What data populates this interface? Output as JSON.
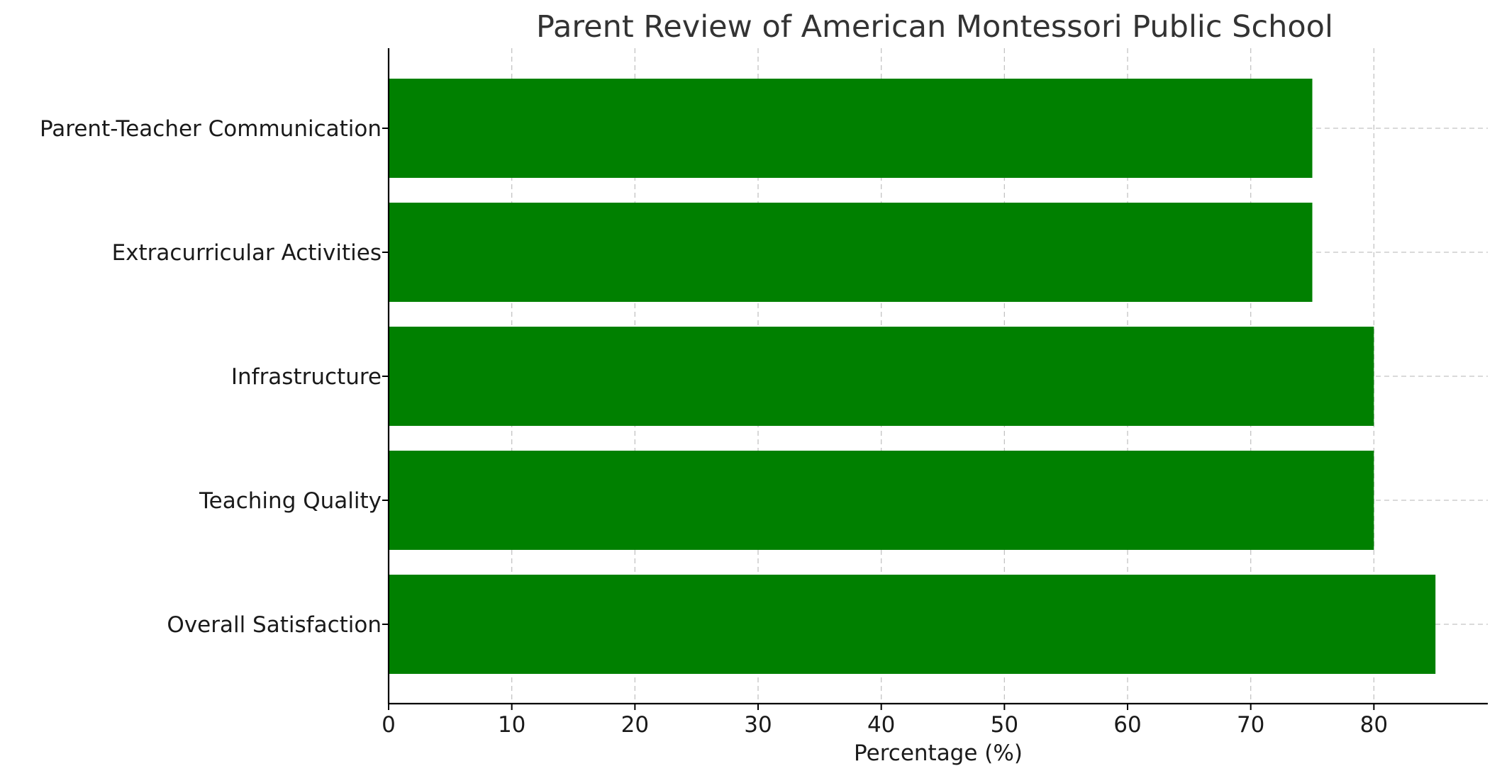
{
  "chart_data": {
    "type": "bar",
    "orientation": "horizontal",
    "title": "Parent Review of American Montessori Public School",
    "xlabel": "Percentage (%)",
    "ylabel": "",
    "categories": [
      "Overall Satisfaction",
      "Teaching Quality",
      "Infrastructure",
      "Extracurricular Activities",
      "Parent-Teacher Communication"
    ],
    "values": [
      85,
      80,
      80,
      75,
      75
    ],
    "xlim": [
      0,
      89.25
    ],
    "xticks": [
      0,
      10,
      20,
      30,
      40,
      50,
      60,
      70,
      80
    ],
    "grid": true,
    "bar_color": "#008000"
  }
}
